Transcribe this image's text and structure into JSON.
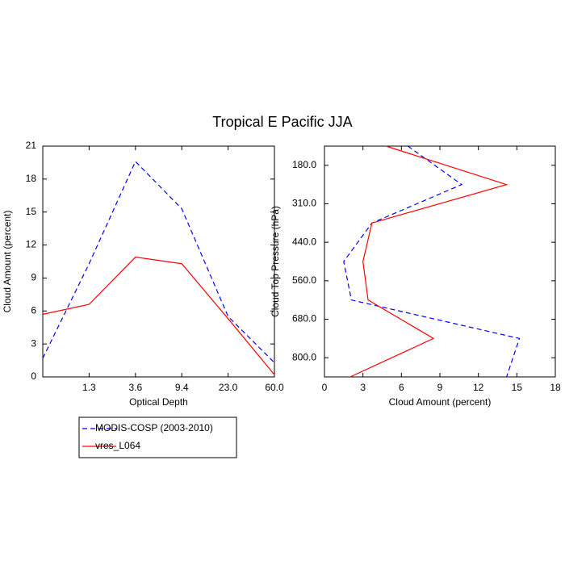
{
  "title": "Tropical E Pacific JJA",
  "chart_data": [
    {
      "type": "line",
      "categories": [
        null,
        "1.3",
        "3.6",
        "9.4",
        "23.0",
        "60.0"
      ],
      "x_label": "Optical Depth",
      "y_label": "Cloud Amount (percent)",
      "ylim": [
        0,
        21
      ],
      "yticks": [
        0,
        3,
        6,
        9,
        12,
        15,
        18,
        21
      ],
      "legend": "bottom-left",
      "series": [
        {
          "name": "MODIS-COSP (2003-2010)",
          "color": "#0000ff",
          "style": "dashed",
          "values": [
            1.7,
            10.3,
            19.6,
            15.3,
            5.5,
            1.3
          ]
        },
        {
          "name": "vres_L064",
          "color": "#ff0000",
          "style": "solid",
          "values": [
            5.7,
            6.6,
            10.9,
            10.3,
            5.3,
            0.2
          ]
        }
      ]
    },
    {
      "type": "hline",
      "categories": [
        "180.0",
        "310.0",
        "440.0",
        "560.0",
        "680.0",
        "800.0",
        null
      ],
      "x_label": "Cloud Amount (percent)",
      "y_label": "Cloud Top Pressure (hPa)",
      "xlim": [
        0,
        18
      ],
      "xticks": [
        0,
        3,
        6,
        9,
        12,
        15,
        18
      ],
      "series": [
        {
          "color": "#0000ff",
          "style": "dashed",
          "values": [
            6.5,
            10.7,
            3.7,
            1.5,
            2.1,
            15.2,
            14.2
          ]
        },
        {
          "color": "#ff0000",
          "style": "solid",
          "values": [
            4.8,
            14.2,
            3.7,
            3.0,
            3.4,
            8.5,
            2.0
          ]
        }
      ]
    }
  ]
}
